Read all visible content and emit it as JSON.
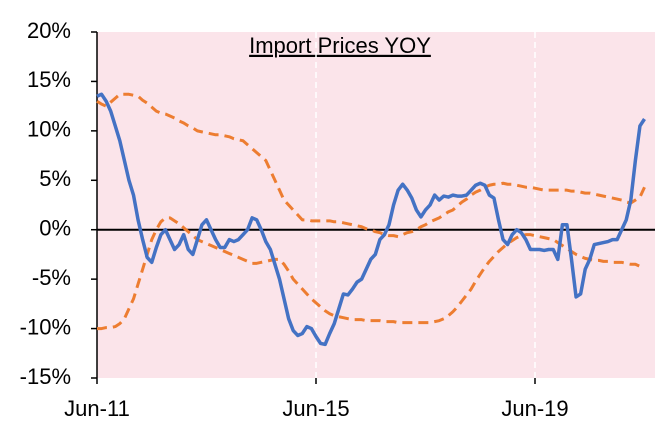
{
  "chart_data": {
    "type": "line",
    "title": "Import Prices YOY",
    "categories": [
      "Jun-11",
      null,
      null,
      null,
      null,
      null,
      null,
      null,
      null,
      null,
      null,
      null,
      null,
      null,
      null,
      null,
      null,
      null,
      null,
      null,
      null,
      null,
      null,
      null,
      null,
      null,
      null,
      null,
      null,
      null,
      null,
      null,
      null,
      null,
      null,
      null,
      null,
      null,
      null,
      null,
      null,
      null,
      null,
      null,
      null,
      null,
      null,
      null,
      "Jun-15",
      null,
      null,
      null,
      null,
      null,
      null,
      null,
      null,
      null,
      null,
      null,
      null,
      null,
      null,
      null,
      null,
      null,
      null,
      null,
      null,
      null,
      null,
      null,
      null,
      null,
      null,
      null,
      null,
      null,
      null,
      null,
      null,
      null,
      null,
      null,
      null,
      null,
      null,
      null,
      null,
      null,
      null,
      null,
      null,
      null,
      null,
      null,
      "Jun-19",
      null,
      null,
      null,
      null,
      null,
      null,
      null,
      null,
      null,
      null,
      null,
      null,
      null,
      null,
      null,
      null,
      null,
      null,
      null,
      null,
      null,
      null,
      null,
      null
    ],
    "series": [
      {
        "color": "#4472c4",
        "dashed": false,
        "values": [
          13.5,
          13.7,
          13,
          12,
          10.5,
          9,
          7,
          5,
          3.5,
          1,
          -1,
          -2.8,
          -3.3,
          -1.8,
          -0.5,
          0,
          -1,
          -2,
          -1.5,
          -0.5,
          -2,
          -2.5,
          -1,
          0.5,
          1,
          0,
          -1,
          -1.8,
          -1.8,
          -1,
          -1.2,
          -1,
          -0.5,
          0,
          1.2,
          1,
          0,
          -1.2,
          -2,
          -3.5,
          -5,
          -7,
          -9,
          -10.2,
          -10.7,
          -10.5,
          -9.8,
          -10,
          -10.8,
          -11.5,
          -11.6,
          -10.5,
          -9.5,
          -8,
          -6.5,
          -6.6,
          -6,
          -5.3,
          -5,
          -4,
          -3,
          -2.5,
          -1,
          -0.5,
          0.5,
          2.5,
          4,
          4.6,
          4,
          3.2,
          2,
          1.3,
          2,
          2.5,
          3.5,
          3,
          3.4,
          3.3,
          3.5,
          3.4,
          3.4,
          3.5,
          4,
          4.5,
          4.7,
          4.5,
          3.5,
          3.2,
          1,
          -1,
          -1.5,
          -0.5,
          0,
          -0.3,
          -1,
          -2,
          -2,
          -2,
          -2.1,
          -2,
          -2,
          -3,
          0.5,
          0.5,
          -3,
          -6.8,
          -6.5,
          -4,
          -3,
          -1.5,
          -1.4,
          -1.3,
          -1.2,
          -1,
          -1,
          0,
          1,
          3,
          7,
          10.5,
          11.2
        ]
      },
      {
        "color": "#ed7d31",
        "dashed": true,
        "values": [
          13,
          12.7,
          12.5,
          12.9,
          13.3,
          13.7,
          13.7,
          13.7,
          13.6,
          13.5,
          13.1,
          12.8,
          12.4,
          12,
          11.8,
          11.7,
          11.5,
          11.3,
          11,
          10.8,
          10.5,
          10.3,
          10,
          9.9,
          9.8,
          9.7,
          9.6,
          9.6,
          9.5,
          9.4,
          9.2,
          9.1,
          9,
          8.6,
          8.2,
          7.8,
          7.4,
          7,
          6,
          5,
          4,
          3,
          2.5,
          2,
          1.5,
          1,
          1,
          0.9,
          0.9,
          0.9,
          0.9,
          0.9,
          0.8,
          0.8,
          0.7,
          0.6,
          0.5,
          0.4,
          0.3,
          0.1,
          0,
          -0.2,
          -0.3,
          -0.5,
          -0.6,
          -0.6,
          -0.7,
          -0.5,
          -0.3,
          -0.2,
          0,
          0.3,
          0.5,
          0.8,
          1,
          1.2,
          1.5,
          1.8,
          2,
          2.4,
          2.8,
          3.1,
          3.5,
          3.8,
          4,
          4.3,
          4.5,
          4.6,
          4.6,
          4.7,
          4.6,
          4.6,
          4.5,
          4.4,
          4.3,
          4.3,
          4.2,
          4.1,
          4,
          4,
          4,
          4,
          4,
          4,
          3.9,
          3.9,
          3.8,
          3.7,
          3.7,
          3.6,
          3.5,
          3.4,
          3.3,
          3.2,
          3.1,
          3,
          2.8,
          2.7,
          3,
          3.3,
          4.3
        ]
      },
      {
        "color": "#ed7d31",
        "dashed": true,
        "values": [
          -10,
          -10,
          -9.9,
          -9.9,
          -9.8,
          -9.5,
          -9,
          -8,
          -7,
          -5.5,
          -4,
          -2.5,
          -1,
          0,
          0.8,
          1.2,
          1.2,
          0.9,
          0.6,
          0.2,
          -0.2,
          -0.6,
          -1,
          -1.2,
          -1.4,
          -1.6,
          -1.8,
          -2,
          -2.2,
          -2.4,
          -2.6,
          -2.8,
          -3,
          -3.2,
          -3.4,
          -3.4,
          -3.3,
          -3.2,
          -3.1,
          -3,
          -3,
          -3.5,
          -4.2,
          -5,
          -5.5,
          -6,
          -6.5,
          -7,
          -7.4,
          -7.8,
          -8.2,
          -8.5,
          -8.7,
          -8.8,
          -8.9,
          -9,
          -9.1,
          -9.1,
          -9.1,
          -9.2,
          -9.2,
          -9.2,
          -9.2,
          -9.3,
          -9.3,
          -9.3,
          -9.4,
          -9.4,
          -9.4,
          -9.4,
          -9.4,
          -9.4,
          -9.4,
          -9.4,
          -9.3,
          -9.2,
          -9,
          -8.7,
          -8.3,
          -7.8,
          -7.2,
          -6.6,
          -6,
          -5.2,
          -4.5,
          -3.8,
          -3.2,
          -2.7,
          -2.2,
          -1.8,
          -1.4,
          -1.1,
          -0.8,
          -0.6,
          -0.5,
          -0.5,
          -0.6,
          -0.7,
          -0.8,
          -0.9,
          -1,
          -1.3,
          -1.6,
          -1.9,
          -2.2,
          -2.5,
          -2.7,
          -2.9,
          -3,
          -3.1,
          -3.1,
          -3.2,
          -3.2,
          -3.3,
          -3.3,
          -3.3,
          -3.4,
          -3.5,
          -3.5,
          -3.7,
          -3.8
        ]
      }
    ],
    "ylim": [
      -15,
      20
    ],
    "yticks": [
      {
        "value": -15,
        "label": "-15%"
      },
      {
        "value": -10,
        "label": "-10%"
      },
      {
        "value": -5,
        "label": "-5%"
      },
      {
        "value": 0,
        "label": "0%"
      },
      {
        "value": 5,
        "label": "5%"
      },
      {
        "value": 10,
        "label": "10%"
      },
      {
        "value": 15,
        "label": "15%"
      },
      {
        "value": 20,
        "label": "20%"
      }
    ],
    "background": "#fbe4ea",
    "x_grid": true
  }
}
